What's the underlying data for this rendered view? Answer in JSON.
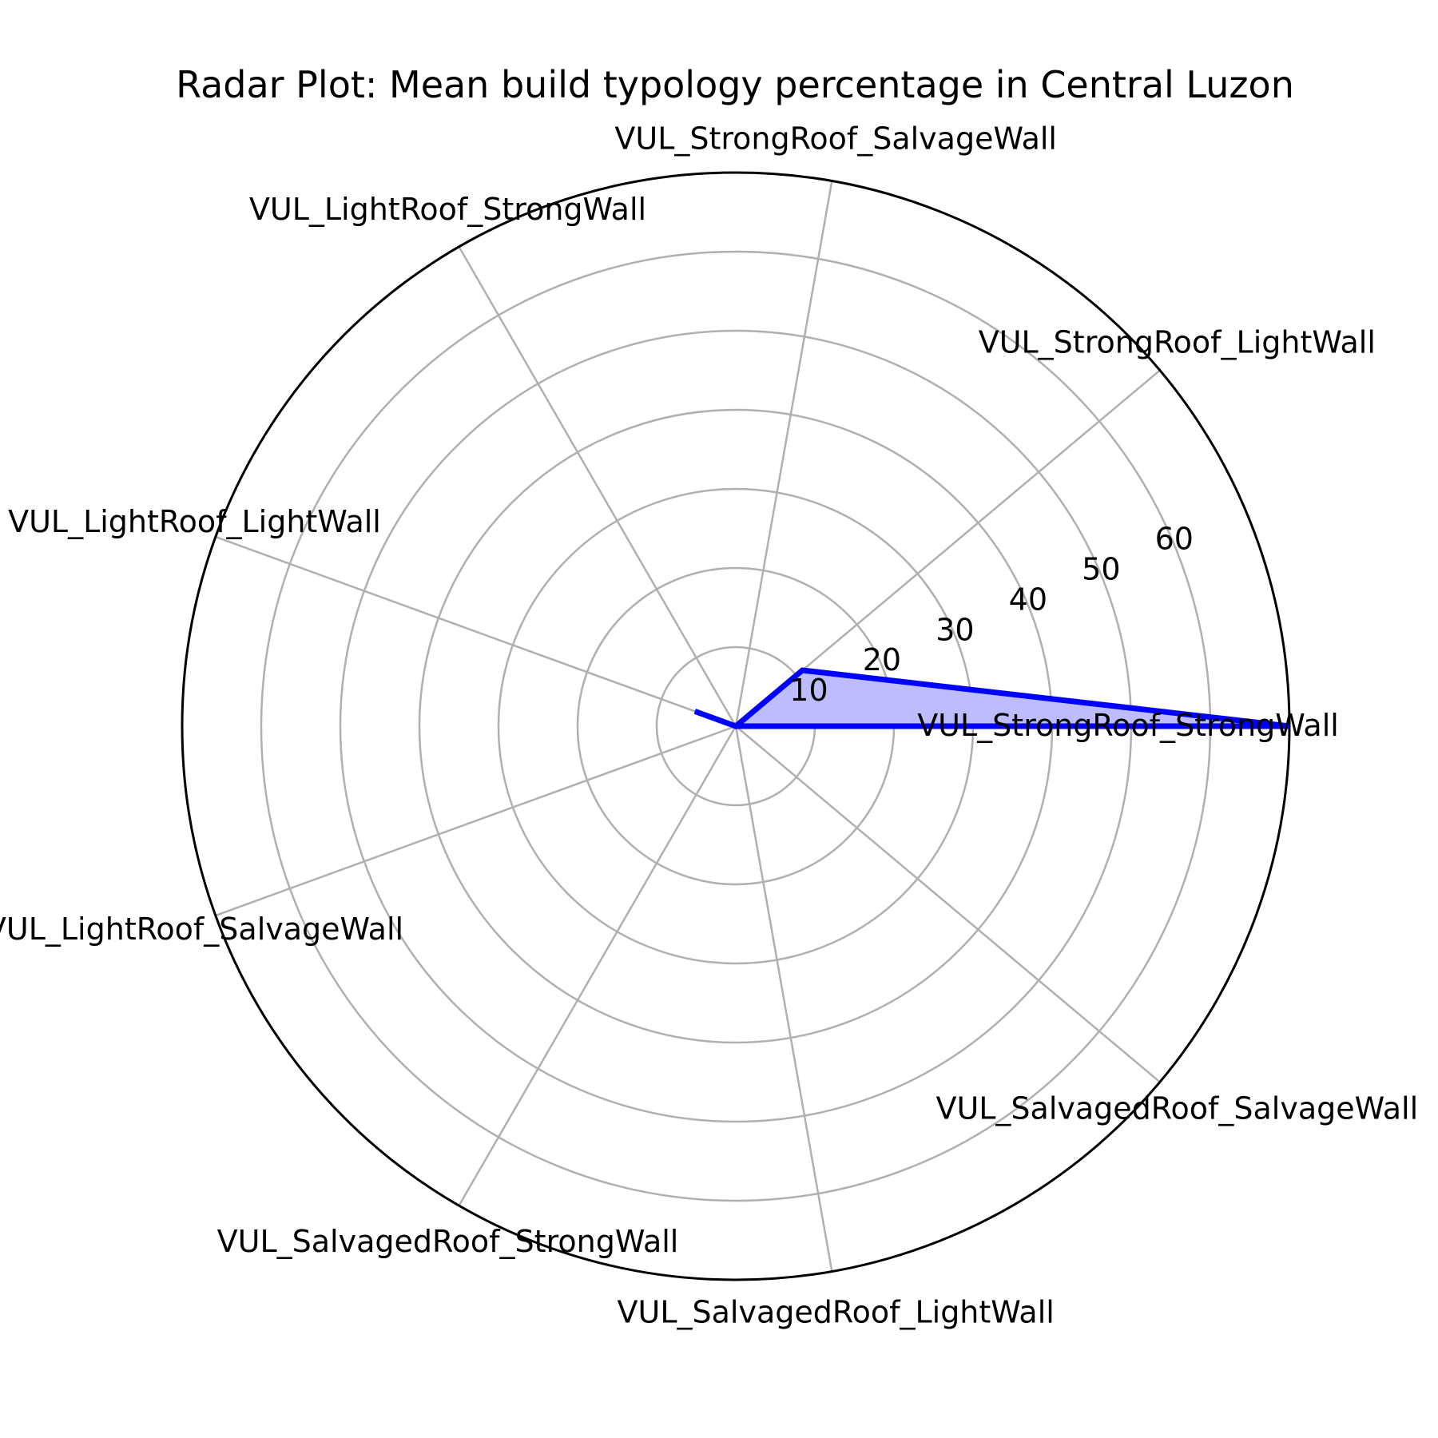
{
  "chart_data": {
    "type": "radar",
    "title": "Radar Plot: Mean build typology percentage in Central Luzon",
    "categories": [
      "VUL_StrongRoof_StrongWall",
      "VUL_StrongRoof_LightWall",
      "VUL_StrongRoof_SalvageWall",
      "VUL_LightRoof_StrongWall",
      "VUL_LightRoof_LightWall",
      "VUL_LightRoof_SalvageWall",
      "VUL_SalvagedRoof_StrongWall",
      "VUL_SalvagedRoof_LightWall",
      "VUL_SalvagedRoof_SalvageWall"
    ],
    "series": [
      {
        "values": [
          70.0,
          11.0,
          0.0,
          0.0,
          5.5,
          0.0,
          0.0,
          0.0,
          0.0
        ]
      }
    ],
    "r_ticks": [
      10,
      20,
      30,
      40,
      50,
      60
    ],
    "r_lim": [
      0,
      70
    ],
    "grid": true,
    "colors": {
      "line": "#0000ff",
      "fill": "#bcbcff",
      "grid": "#b0b0b0",
      "frame": "#000000"
    }
  }
}
